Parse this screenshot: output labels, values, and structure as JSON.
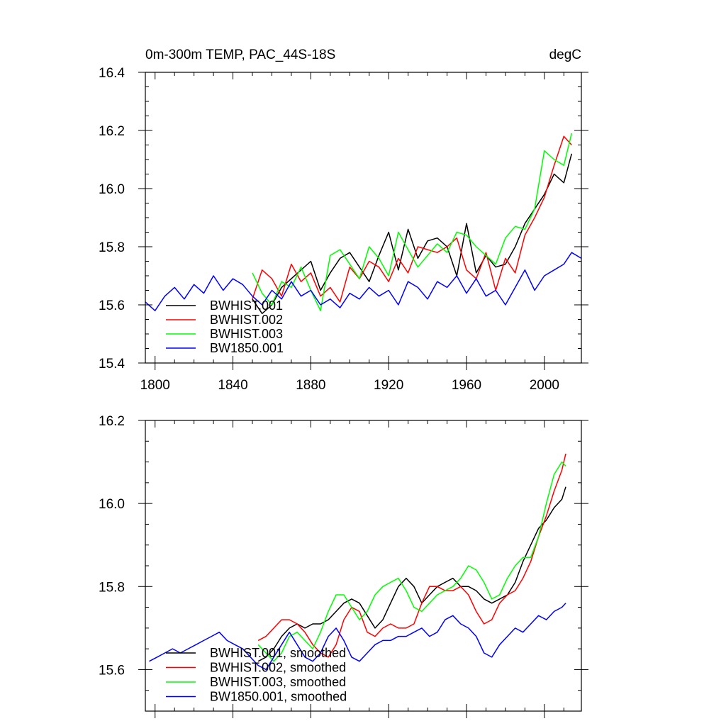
{
  "chart_data": [
    {
      "type": "line",
      "title": "0m-300m TEMP, PAC_44S-18S",
      "units": "degC",
      "xlim": [
        1795,
        2019
      ],
      "ylim": [
        15.4,
        16.4
      ],
      "xticks": [
        1800,
        1840,
        1880,
        1920,
        1960,
        2000
      ],
      "xtick_labels": [
        "1800",
        "1840",
        "1880",
        "1920",
        "1960",
        "2000"
      ],
      "yticks": [
        15.4,
        15.6,
        15.8,
        16.0,
        16.2,
        16.4
      ],
      "ytick_labels": [
        "15.4",
        "15.6",
        "15.8",
        "16.0",
        "16.2",
        "16.4"
      ],
      "legend_position": "bottom-left",
      "series": [
        {
          "name": "BWHIST.001",
          "color": "#000000",
          "x": [
            1850,
            1855,
            1860,
            1865,
            1870,
            1875,
            1880,
            1885,
            1890,
            1895,
            1900,
            1905,
            1910,
            1915,
            1920,
            1925,
            1930,
            1935,
            1940,
            1945,
            1950,
            1955,
            1960,
            1965,
            1970,
            1975,
            1980,
            1985,
            1990,
            1995,
            2000,
            2005,
            2010,
            2014
          ],
          "y": [
            15.62,
            15.57,
            15.6,
            15.66,
            15.69,
            15.72,
            15.75,
            15.65,
            15.71,
            15.76,
            15.78,
            15.73,
            15.68,
            15.77,
            15.85,
            15.72,
            15.86,
            15.76,
            15.82,
            15.83,
            15.8,
            15.7,
            15.88,
            15.71,
            15.77,
            15.73,
            15.74,
            15.8,
            15.88,
            15.93,
            15.98,
            16.05,
            16.02,
            16.12
          ]
        },
        {
          "name": "BWHIST.002",
          "color": "#ff0000",
          "x": [
            1850,
            1855,
            1860,
            1865,
            1870,
            1875,
            1880,
            1885,
            1890,
            1895,
            1900,
            1905,
            1910,
            1915,
            1920,
            1925,
            1930,
            1935,
            1940,
            1945,
            1950,
            1955,
            1960,
            1965,
            1970,
            1975,
            1980,
            1985,
            1990,
            1995,
            2000,
            2005,
            2010,
            2014
          ],
          "y": [
            15.62,
            15.72,
            15.69,
            15.63,
            15.74,
            15.68,
            15.71,
            15.63,
            15.66,
            15.61,
            15.73,
            15.69,
            15.75,
            15.73,
            15.68,
            15.76,
            15.71,
            15.8,
            15.79,
            15.78,
            15.8,
            15.83,
            15.72,
            15.69,
            15.78,
            15.65,
            15.76,
            15.71,
            15.84,
            15.9,
            15.97,
            16.08,
            16.18,
            16.15
          ]
        },
        {
          "name": "BWHIST.003",
          "color": "#00ff00",
          "x": [
            1850,
            1855,
            1860,
            1865,
            1870,
            1875,
            1880,
            1885,
            1890,
            1895,
            1900,
            1905,
            1910,
            1915,
            1920,
            1925,
            1930,
            1935,
            1940,
            1945,
            1950,
            1955,
            1960,
            1965,
            1970,
            1975,
            1980,
            1985,
            1990,
            1995,
            2000,
            2005,
            2010,
            2014
          ],
          "y": [
            15.71,
            15.64,
            15.6,
            15.68,
            15.66,
            15.73,
            15.65,
            15.58,
            15.77,
            15.79,
            15.74,
            15.69,
            15.8,
            15.76,
            15.7,
            15.85,
            15.79,
            15.73,
            15.77,
            15.81,
            15.78,
            15.85,
            15.84,
            15.8,
            15.77,
            15.74,
            15.83,
            15.87,
            15.86,
            15.93,
            16.13,
            16.1,
            16.08,
            16.19
          ]
        },
        {
          "name": "BW1850.001",
          "color": "#0000ff",
          "x": [
            1795,
            1800,
            1805,
            1810,
            1815,
            1820,
            1825,
            1830,
            1835,
            1840,
            1845,
            1850,
            1855,
            1860,
            1865,
            1870,
            1875,
            1880,
            1885,
            1890,
            1895,
            1900,
            1905,
            1910,
            1915,
            1920,
            1925,
            1930,
            1935,
            1940,
            1945,
            1950,
            1955,
            1960,
            1965,
            1970,
            1975,
            1980,
            1985,
            1990,
            1995,
            2000,
            2005,
            2010,
            2014,
            2019
          ],
          "y": [
            15.61,
            15.58,
            15.63,
            15.66,
            15.62,
            15.67,
            15.64,
            15.7,
            15.65,
            15.69,
            15.67,
            15.63,
            15.6,
            15.65,
            15.62,
            15.68,
            15.63,
            15.65,
            15.6,
            15.62,
            15.59,
            15.64,
            15.62,
            15.66,
            15.63,
            15.65,
            15.6,
            15.68,
            15.66,
            15.62,
            15.68,
            15.66,
            15.7,
            15.64,
            15.69,
            15.63,
            15.65,
            15.6,
            15.66,
            15.72,
            15.65,
            15.7,
            15.72,
            15.74,
            15.78,
            15.76
          ]
        }
      ]
    },
    {
      "type": "line",
      "title": "",
      "xlim": [
        1795,
        2019
      ],
      "ylim": [
        15.5,
        16.2
      ],
      "xticks": [
        1800,
        1840,
        1880,
        1920,
        1960,
        2000
      ],
      "yticks": [
        15.6,
        15.8,
        16.0,
        16.2
      ],
      "ytick_labels": [
        "15.6",
        "15.8",
        "16.0",
        "16.2"
      ],
      "legend_position": "bottom-left",
      "series": [
        {
          "name": "BWHIST.001, smoothed",
          "color": "#000000",
          "x": [
            1853,
            1857,
            1861,
            1865,
            1869,
            1873,
            1877,
            1881,
            1885,
            1889,
            1893,
            1897,
            1901,
            1905,
            1909,
            1913,
            1917,
            1921,
            1925,
            1929,
            1933,
            1937,
            1941,
            1945,
            1949,
            1953,
            1957,
            1961,
            1965,
            1969,
            1973,
            1977,
            1981,
            1985,
            1989,
            1993,
            1997,
            2001,
            2005,
            2009,
            2011
          ],
          "y": [
            15.62,
            15.63,
            15.65,
            15.68,
            15.7,
            15.71,
            15.7,
            15.71,
            15.71,
            15.72,
            15.74,
            15.76,
            15.77,
            15.76,
            15.73,
            15.7,
            15.72,
            15.76,
            15.8,
            15.82,
            15.8,
            15.76,
            15.78,
            15.8,
            15.81,
            15.82,
            15.8,
            15.8,
            15.79,
            15.77,
            15.76,
            15.77,
            15.78,
            15.81,
            15.86,
            15.9,
            15.94,
            15.96,
            15.99,
            16.01,
            16.04
          ]
        },
        {
          "name": "BWHIST.002, smoothed",
          "color": "#ff0000",
          "x": [
            1853,
            1857,
            1861,
            1865,
            1869,
            1873,
            1877,
            1881,
            1885,
            1889,
            1893,
            1897,
            1901,
            1905,
            1909,
            1913,
            1917,
            1921,
            1925,
            1929,
            1933,
            1937,
            1941,
            1945,
            1949,
            1953,
            1957,
            1961,
            1965,
            1969,
            1973,
            1977,
            1981,
            1985,
            1989,
            1993,
            1997,
            2001,
            2005,
            2009,
            2011
          ],
          "y": [
            15.67,
            15.68,
            15.7,
            15.72,
            15.72,
            15.71,
            15.69,
            15.66,
            15.64,
            15.63,
            15.66,
            15.72,
            15.75,
            15.74,
            15.69,
            15.68,
            15.7,
            15.71,
            15.7,
            15.7,
            15.71,
            15.76,
            15.8,
            15.8,
            15.79,
            15.79,
            15.8,
            15.78,
            15.74,
            15.71,
            15.72,
            15.76,
            15.78,
            15.79,
            15.82,
            15.86,
            15.92,
            15.97,
            16.03,
            16.08,
            16.12
          ]
        },
        {
          "name": "BWHIST.003, smoothed",
          "color": "#00ff00",
          "x": [
            1853,
            1857,
            1861,
            1865,
            1869,
            1873,
            1877,
            1881,
            1885,
            1889,
            1893,
            1897,
            1901,
            1905,
            1909,
            1913,
            1917,
            1921,
            1925,
            1929,
            1933,
            1937,
            1941,
            1945,
            1949,
            1953,
            1957,
            1961,
            1965,
            1969,
            1973,
            1977,
            1981,
            1985,
            1989,
            1993,
            1997,
            2001,
            2005,
            2009,
            2011
          ],
          "y": [
            15.66,
            15.64,
            15.62,
            15.64,
            15.68,
            15.69,
            15.67,
            15.65,
            15.69,
            15.74,
            15.78,
            15.78,
            15.75,
            15.72,
            15.74,
            15.78,
            15.8,
            15.81,
            15.82,
            15.79,
            15.75,
            15.74,
            15.76,
            15.78,
            15.79,
            15.8,
            15.82,
            15.85,
            15.84,
            15.81,
            15.77,
            15.78,
            15.82,
            15.85,
            15.87,
            15.87,
            15.92,
            16.0,
            16.07,
            16.1,
            16.09
          ]
        },
        {
          "name": "BW1850.001, smoothed",
          "color": "#0000ff",
          "x": [
            1797,
            1801,
            1805,
            1809,
            1813,
            1817,
            1821,
            1825,
            1829,
            1833,
            1837,
            1841,
            1845,
            1849,
            1853,
            1857,
            1861,
            1865,
            1869,
            1873,
            1877,
            1881,
            1885,
            1889,
            1893,
            1897,
            1901,
            1905,
            1909,
            1913,
            1917,
            1921,
            1925,
            1929,
            1933,
            1937,
            1941,
            1945,
            1949,
            1953,
            1957,
            1961,
            1965,
            1969,
            1973,
            1977,
            1981,
            1985,
            1989,
            1993,
            1997,
            2001,
            2005,
            2009,
            2011
          ],
          "y": [
            15.62,
            15.63,
            15.64,
            15.65,
            15.64,
            15.65,
            15.66,
            15.67,
            15.68,
            15.69,
            15.67,
            15.66,
            15.65,
            15.63,
            15.61,
            15.6,
            15.63,
            15.66,
            15.69,
            15.66,
            15.63,
            15.62,
            15.64,
            15.68,
            15.7,
            15.67,
            15.63,
            15.62,
            15.64,
            15.66,
            15.67,
            15.67,
            15.68,
            15.68,
            15.69,
            15.7,
            15.68,
            15.69,
            15.72,
            15.73,
            15.71,
            15.7,
            15.68,
            15.64,
            15.63,
            15.66,
            15.68,
            15.7,
            15.69,
            15.71,
            15.73,
            15.72,
            15.74,
            15.75,
            15.76
          ]
        }
      ]
    }
  ]
}
